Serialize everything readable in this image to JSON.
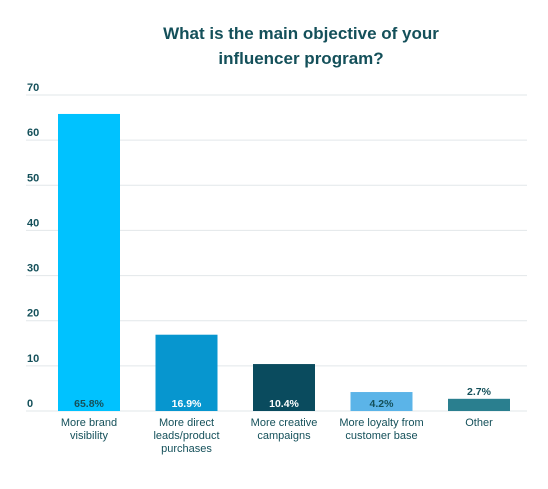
{
  "chart_data": {
    "type": "bar",
    "title_lines": [
      "What is the main objective of your",
      "influencer program?"
    ],
    "categories": [
      [
        "More brand",
        "visibility"
      ],
      [
        "More direct",
        "leads/product",
        "purchases"
      ],
      [
        "More creative",
        "campaigns"
      ],
      [
        "More loyalty from",
        "customer base"
      ],
      [
        "Other"
      ]
    ],
    "values": [
      65.8,
      16.9,
      10.4,
      4.2,
      2.7
    ],
    "data_labels": [
      "65.8%",
      "16.9%",
      "10.4%",
      "4.2%",
      "2.7%"
    ],
    "colors": [
      "#00c2ff",
      "#0796cf",
      "#0a4b5e",
      "#5bb4e8",
      "#2a7f8f"
    ],
    "label_colors": [
      "#14505a",
      "#ffffff",
      "#ffffff",
      "#14505a",
      "#14505a"
    ],
    "yticks": [
      "0",
      "10",
      "20",
      "30",
      "40",
      "50",
      "60",
      "70"
    ],
    "ylim": [
      0,
      70
    ],
    "xlabel": "",
    "ylabel": "",
    "grid": true,
    "legend": "none"
  }
}
